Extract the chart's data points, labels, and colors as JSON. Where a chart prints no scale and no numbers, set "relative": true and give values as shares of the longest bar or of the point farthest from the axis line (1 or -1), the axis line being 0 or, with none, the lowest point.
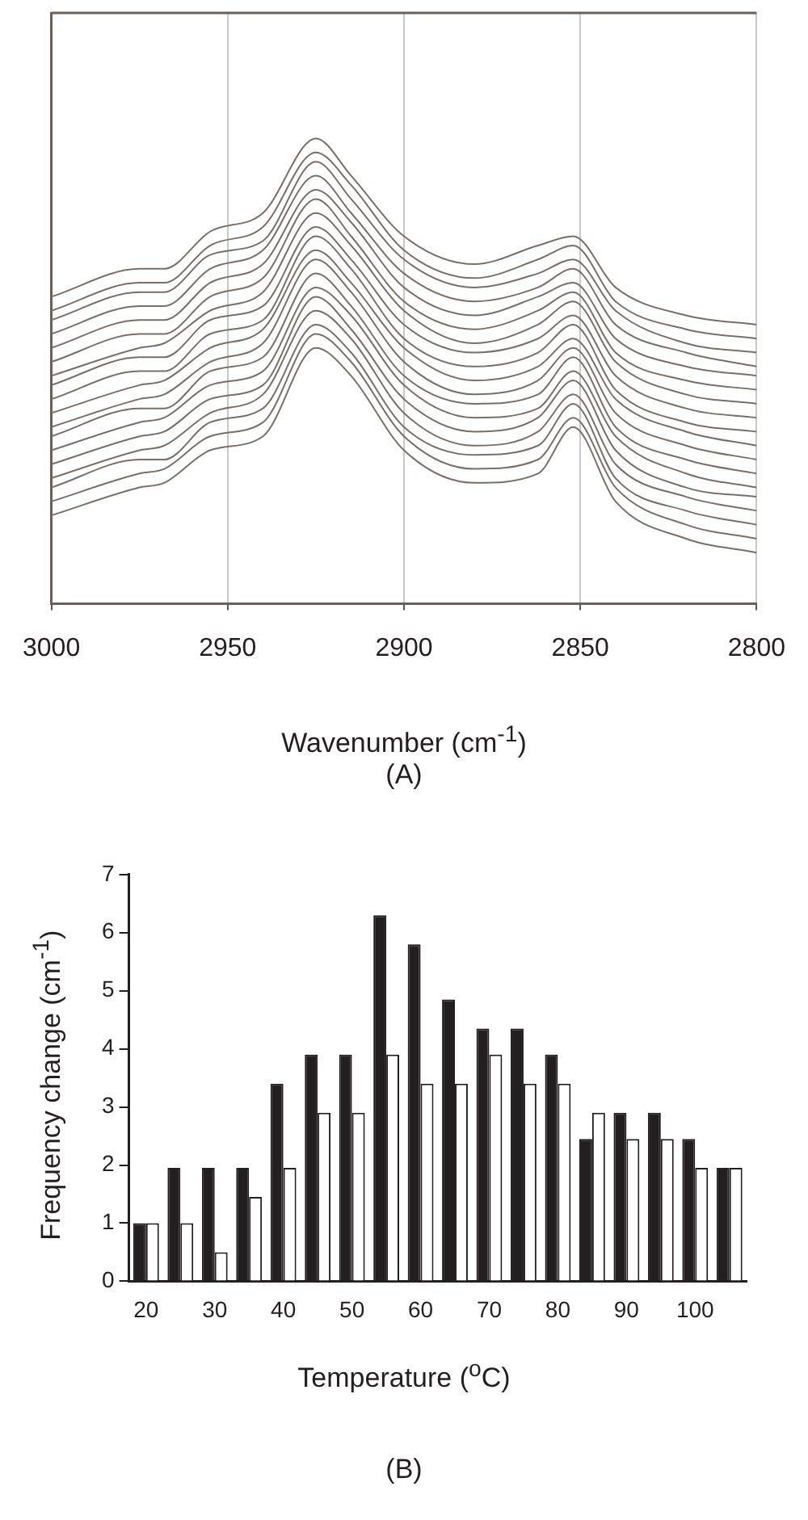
{
  "chart_data": [
    {
      "type": "line",
      "relative": true,
      "x": [
        3000,
        2975,
        2968,
        2955,
        2940,
        2925,
        2915,
        2900,
        2880,
        2862,
        2852,
        2840,
        2820,
        2800
      ],
      "xlim": [
        3000,
        2800
      ],
      "xticks": [
        3000,
        2950,
        2900,
        2850,
        2800
      ],
      "grid": "x",
      "xlabel": "Wavenumber (cm$^{-1}$)",
      "annotations": [
        "(A)"
      ],
      "series": [
        {
          "color": "#7a6e68",
          "values": [
            0.66,
            0.72,
            0.72,
            0.8,
            0.84,
            1,
            0.92,
            0.79,
            0.73,
            0.77,
            0.79,
            0.68,
            0.62,
            0.6
          ]
        },
        {
          "color": "#7a6e68",
          "values": [
            0.63,
            0.69,
            0.69,
            0.77,
            0.81,
            0.97,
            0.9,
            0.76,
            0.7,
            0.74,
            0.77,
            0.65,
            0.59,
            0.57
          ]
        },
        {
          "color": "#7a6e68",
          "values": [
            0.61,
            0.67,
            0.67,
            0.75,
            0.78,
            0.95,
            0.87,
            0.74,
            0.68,
            0.71,
            0.74,
            0.63,
            0.56,
            0.54
          ]
        },
        {
          "color": "#7a6e68",
          "values": [
            0.58,
            0.64,
            0.64,
            0.72,
            0.76,
            0.92,
            0.84,
            0.71,
            0.65,
            0.68,
            0.72,
            0.6,
            0.54,
            0.51
          ]
        },
        {
          "color": "#7a6e68",
          "values": [
            0.55,
            0.61,
            0.61,
            0.69,
            0.73,
            0.89,
            0.82,
            0.68,
            0.62,
            0.66,
            0.69,
            0.57,
            0.51,
            0.49
          ]
        },
        {
          "color": "#7a6e68",
          "values": [
            0.52,
            0.58,
            0.58,
            0.66,
            0.7,
            0.87,
            0.79,
            0.65,
            0.59,
            0.63,
            0.67,
            0.54,
            0.48,
            0.46
          ]
        },
        {
          "color": "#7a6e68",
          "values": [
            0.49,
            0.55,
            0.56,
            0.63,
            0.67,
            0.84,
            0.77,
            0.63,
            0.56,
            0.6,
            0.65,
            0.52,
            0.45,
            0.43
          ]
        },
        {
          "color": "#7a6e68",
          "values": [
            0.47,
            0.53,
            0.53,
            0.61,
            0.64,
            0.81,
            0.74,
            0.6,
            0.54,
            0.57,
            0.62,
            0.49,
            0.42,
            0.4
          ]
        },
        {
          "color": "#7a6e68",
          "values": [
            0.44,
            0.5,
            0.5,
            0.58,
            0.61,
            0.79,
            0.72,
            0.57,
            0.51,
            0.54,
            0.6,
            0.46,
            0.39,
            0.37
          ]
        },
        {
          "color": "#7a6e68",
          "values": [
            0.41,
            0.47,
            0.48,
            0.55,
            0.59,
            0.76,
            0.69,
            0.55,
            0.48,
            0.51,
            0.57,
            0.44,
            0.37,
            0.34
          ]
        },
        {
          "color": "#7a6e68",
          "values": [
            0.38,
            0.44,
            0.45,
            0.52,
            0.56,
            0.74,
            0.67,
            0.52,
            0.45,
            0.48,
            0.55,
            0.41,
            0.34,
            0.31
          ]
        },
        {
          "color": "#7a6e68",
          "values": [
            0.36,
            0.42,
            0.42,
            0.5,
            0.53,
            0.71,
            0.64,
            0.49,
            0.43,
            0.45,
            0.53,
            0.38,
            0.31,
            0.28
          ]
        },
        {
          "color": "#7a6e68",
          "values": [
            0.33,
            0.39,
            0.4,
            0.47,
            0.5,
            0.68,
            0.62,
            0.47,
            0.4,
            0.42,
            0.5,
            0.36,
            0.28,
            0.25
          ]
        },
        {
          "color": "#7a6e68",
          "values": [
            0.3,
            0.36,
            0.37,
            0.44,
            0.47,
            0.66,
            0.59,
            0.44,
            0.37,
            0.4,
            0.48,
            0.33,
            0.25,
            0.23
          ]
        },
        {
          "color": "#7a6e68",
          "values": [
            0.27,
            0.33,
            0.34,
            0.41,
            0.45,
            0.63,
            0.57,
            0.41,
            0.34,
            0.37,
            0.45,
            0.3,
            0.23,
            0.2
          ]
        },
        {
          "color": "#7a6e68",
          "values": [
            0.25,
            0.31,
            0.31,
            0.39,
            0.42,
            0.6,
            0.54,
            0.38,
            0.32,
            0.34,
            0.43,
            0.27,
            0.2,
            0.17
          ]
        },
        {
          "color": "#7a6e68",
          "values": [
            0.22,
            0.28,
            0.29,
            0.36,
            0.39,
            0.58,
            0.52,
            0.36,
            0.29,
            0.31,
            0.4,
            0.25,
            0.17,
            0.14
          ]
        },
        {
          "color": "#7a6e68",
          "values": [
            0.19,
            0.25,
            0.26,
            0.33,
            0.36,
            0.55,
            0.49,
            0.33,
            0.26,
            0.28,
            0.38,
            0.22,
            0.14,
            0.11
          ]
        }
      ]
    },
    {
      "type": "bar",
      "categories": [
        "20",
        null,
        "30",
        null,
        "40",
        null,
        "50",
        null,
        "60",
        null,
        "70",
        null,
        "80",
        null,
        "90",
        null,
        "100",
        null
      ],
      "ylim": [
        0,
        7
      ],
      "yticks": [
        0,
        1,
        2,
        3,
        4,
        5,
        6,
        7
      ],
      "xlabel": "Temperature ($^{o}$C)",
      "ylabel": "Frequency change (cm$^{-1}$)",
      "annotations": [
        "(B)"
      ],
      "series": [
        {
          "color": "#231f20",
          "values": [
            1,
            1.95,
            1.95,
            1.95,
            3.4,
            3.9,
            3.9,
            6.3,
            5.8,
            4.85,
            4.35,
            4.35,
            3.9,
            2.45,
            2.9,
            2.9,
            2.45,
            1.95
          ]
        },
        {
          "color": "#ffffff",
          "values": [
            1,
            1,
            0.5,
            1.45,
            1.95,
            2.9,
            2.9,
            3.9,
            3.4,
            3.4,
            3.9,
            3.4,
            3.4,
            2.9,
            2.45,
            2.45,
            1.95,
            1.95
          ]
        }
      ]
    }
  ]
}
